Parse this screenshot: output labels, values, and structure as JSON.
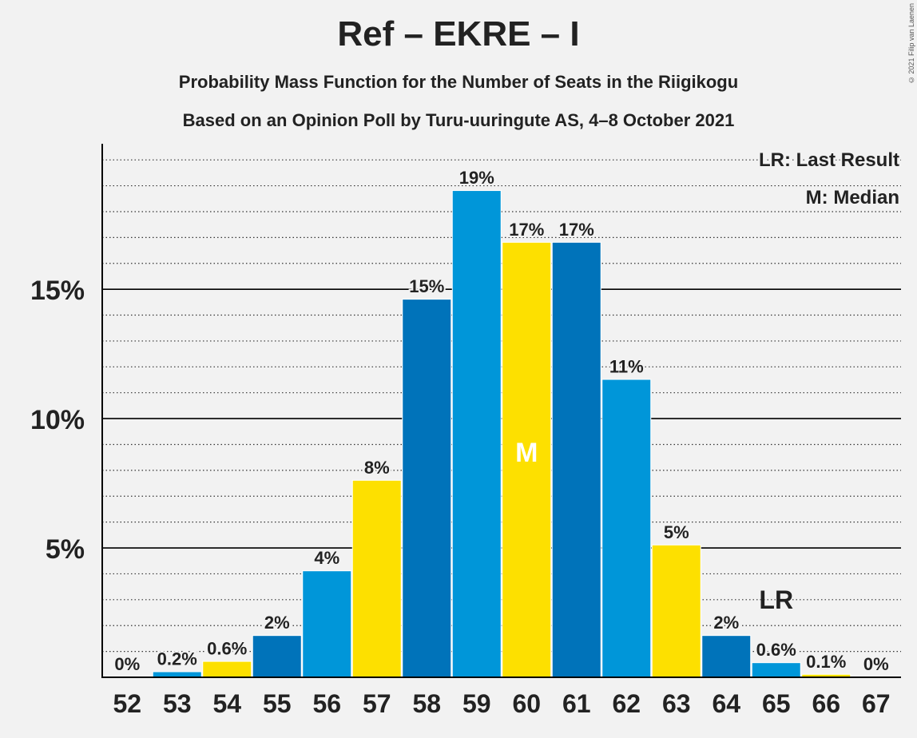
{
  "header": {
    "title": "Ref – EKRE – I",
    "subtitle1": "Probability Mass Function for the Number of Seats in the Riigikogu",
    "subtitle2": "Based on an Opinion Poll by Turu-uuringute AS, 4–8 October 2021",
    "copyright": "© 2021 Filip van Laenen"
  },
  "chart_data": {
    "type": "bar",
    "categories": [
      "52",
      "53",
      "54",
      "55",
      "56",
      "57",
      "58",
      "59",
      "60",
      "61",
      "62",
      "63",
      "64",
      "65",
      "66",
      "67"
    ],
    "values": [
      0,
      0.2,
      0.6,
      1.6,
      4.1,
      7.6,
      14.6,
      18.8,
      16.8,
      16.8,
      11.5,
      5.1,
      1.6,
      0.55,
      0.1,
      0
    ],
    "labels": [
      "0%",
      "0.2%",
      "0.6%",
      "2%",
      "4%",
      "8%",
      "15%",
      "19%",
      "17%",
      "17%",
      "11%",
      "5%",
      "2%",
      "0.6%",
      "0.1%",
      "0%"
    ],
    "bar_colors": [
      "#0073ba",
      "#0096d9",
      "#fde000",
      "#0073ba",
      "#0096d9",
      "#fde000",
      "#0073ba",
      "#0096d9",
      "#fde000",
      "#0073ba",
      "#0096d9",
      "#fde000",
      "#0073ba",
      "#0096d9",
      "#fde000",
      "#0073ba"
    ],
    "ylim": [
      0,
      20.5
    ],
    "yticks": [
      5,
      10,
      15
    ],
    "ytick_labels": [
      "5%",
      "10%",
      "15%"
    ],
    "minor_gridlines": true,
    "median_seat": "60",
    "median_marker": "M",
    "last_result_seat": "65",
    "last_result_marker": "LR",
    "legend": {
      "position": "top-right",
      "items": [
        "LR: Last Result",
        "M: Median"
      ]
    },
    "colors": {
      "dark_blue": "#0073ba",
      "light_blue": "#0096d9",
      "yellow": "#fde000",
      "axis": "#000000"
    }
  }
}
